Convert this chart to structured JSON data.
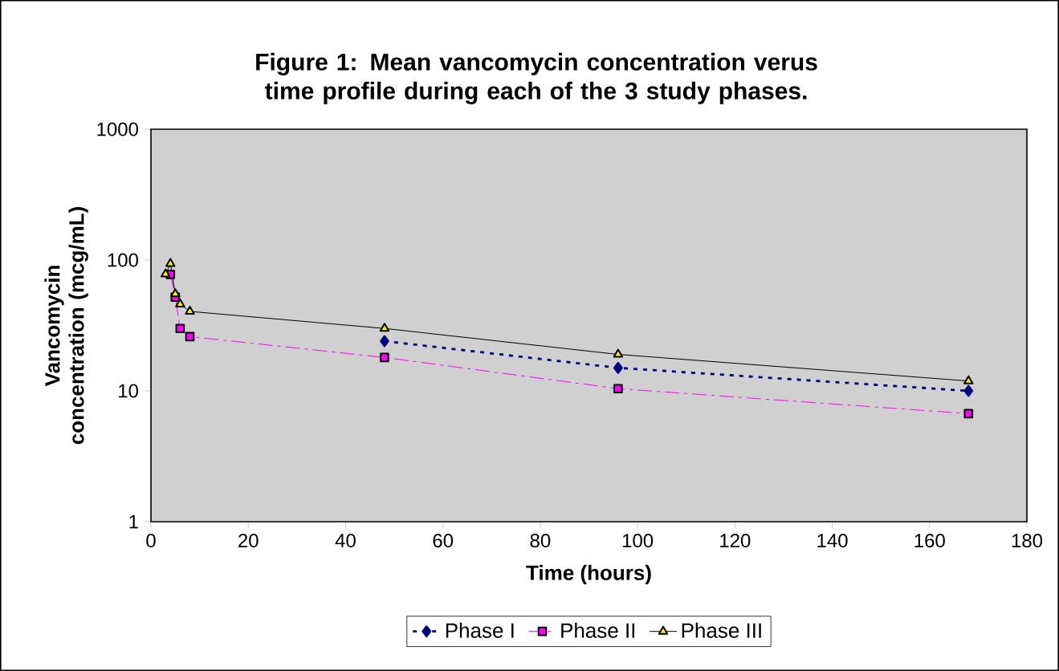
{
  "chart_data": {
    "type": "line",
    "title": "Figure 1: Mean vancomycin concentration verus time profile during each of the 3 study phases.",
    "xlabel": "Time (hours)",
    "ylabel": "Vancomycin concentration (mcg/mL)",
    "log": "y",
    "xlim": [
      0,
      180
    ],
    "xticks": [
      0,
      20,
      40,
      60,
      80,
      100,
      120,
      140,
      160,
      180
    ],
    "ylim": [
      1,
      1000
    ],
    "yticks": [
      1,
      10,
      100,
      1000
    ],
    "grid": false,
    "legend": "bottom",
    "series": [
      {
        "name": "Phase I",
        "color": "#000080",
        "marker": "diamond",
        "line_style": "dotted",
        "x": [
          48,
          96,
          168
        ],
        "values": [
          24,
          15,
          10
        ]
      },
      {
        "name": "Phase II",
        "color": "#ff00ff",
        "marker": "square",
        "line_style": "dashed",
        "x": [
          4,
          5,
          6,
          8,
          48,
          96,
          168
        ],
        "values": [
          77.6,
          52,
          30,
          26,
          18,
          10.4,
          6.7
        ]
      },
      {
        "name": "Phase III",
        "color": "#000000",
        "marker": "triangle",
        "line_style": "solid",
        "x": [
          3,
          4,
          5,
          6,
          8,
          48,
          96,
          168
        ],
        "values": [
          78,
          94,
          55,
          46,
          40.5,
          30,
          19,
          11.9
        ]
      }
    ]
  }
}
